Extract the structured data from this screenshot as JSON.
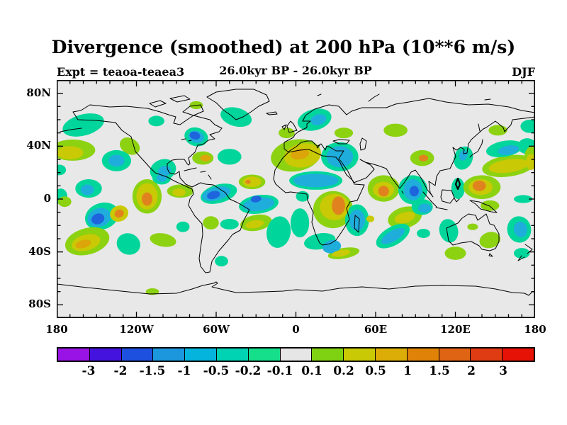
{
  "header": {
    "title": "Divergence (smoothed) at 200 hPa (10**6 m/s)",
    "experiment_label": "Expt = teaoa-teaea3",
    "period_label": "26.0kyr BP - 26.0kyr BP",
    "season_label": "DJF"
  },
  "chart_data": {
    "type": "filled-contour-map",
    "title": "Divergence (smoothed) at 200 hPa (10**6 m/s)",
    "variable": "Divergence (smoothed)",
    "pressure_level_hpa": 200,
    "units": "10**6 m/s",
    "experiment": "teaoa-teaea3",
    "period": "26.0kyr BP - 26.0kyr BP",
    "season": "DJF",
    "projection": "equirectangular",
    "lon_range": [
      -180,
      180
    ],
    "lat_range": [
      -90,
      90
    ],
    "grid": false,
    "legend_position": "bottom-colorbar",
    "map_background": "#E8E8E8",
    "contour_levels": [
      "-3",
      "-2",
      "-1.5",
      "-1",
      "-0.5",
      "-0.2",
      "-0.1",
      "0.1",
      "0.2",
      "0.5",
      "1",
      "1.5",
      "2",
      "3"
    ],
    "level_colors": [
      "#9913E6",
      "#4413DD",
      "#1E50E0",
      "#1C96DC",
      "#05B4DC",
      "#00D2B4",
      "#16DF8C",
      "#E6E6E6",
      "#7FD211",
      "#C9C905",
      "#DCAD07",
      "#E08207",
      "#DF6414",
      "#E03C14",
      "#E61205"
    ],
    "axes": {
      "x_major": [
        [
          -180,
          "180"
        ],
        [
          -120,
          "120W"
        ],
        [
          -60,
          "60W"
        ],
        [
          0,
          "0"
        ],
        [
          60,
          "60E"
        ],
        [
          120,
          "120E"
        ],
        [
          180,
          "180"
        ]
      ],
      "y_major": [
        [
          80,
          "80N"
        ],
        [
          40,
          "40N"
        ],
        [
          0,
          "0"
        ],
        [
          -40,
          "40S"
        ],
        [
          -80,
          "80S"
        ]
      ],
      "minor_step_deg": 10
    },
    "palette": {
      "teal": "#00D69B",
      "cyan": "#1FAEDC",
      "blue": "#1E64DC",
      "gy": "#8CD211",
      "olive": "#C9C905",
      "gold": "#DCA50A",
      "orange": "#E0831E"
    },
    "anomaly_blobs": [
      [
        -160,
        56,
        16,
        8,
        -15,
        "teal"
      ],
      [
        -45,
        62,
        12,
        7,
        15,
        "teal"
      ],
      [
        14,
        60,
        13,
        8,
        -15,
        "teal"
      ],
      [
        -105,
        59,
        6,
        4,
        0,
        "teal"
      ],
      [
        -75,
        71,
        5,
        3,
        0,
        "gy"
      ],
      [
        -7,
        50,
        6,
        4,
        0,
        "gy"
      ],
      [
        36,
        50,
        7,
        4,
        0,
        "gy"
      ],
      [
        75,
        52,
        9,
        5,
        0,
        "gy"
      ],
      [
        152,
        52,
        7,
        4,
        0,
        "gy"
      ],
      [
        176,
        55,
        7,
        5,
        0,
        "teal"
      ],
      [
        -168,
        37,
        17,
        8,
        0,
        "gy"
      ],
      [
        -125,
        40,
        8,
        6,
        30,
        "gy"
      ],
      [
        -135,
        29,
        11,
        8,
        0,
        "teal"
      ],
      [
        -100,
        22,
        10,
        8,
        -20,
        "teal"
      ],
      [
        -75,
        47,
        9,
        7,
        15,
        "teal"
      ],
      [
        -50,
        32,
        9,
        6,
        0,
        "teal"
      ],
      [
        -70,
        31,
        8,
        5,
        0,
        "gy"
      ],
      [
        0,
        33,
        19,
        12,
        -10,
        "gy"
      ],
      [
        33,
        32,
        14,
        11,
        0,
        "teal"
      ],
      [
        95,
        31,
        9,
        6,
        0,
        "gy"
      ],
      [
        126,
        31,
        7,
        9,
        20,
        "teal"
      ],
      [
        160,
        25,
        20,
        8,
        -8,
        "gy"
      ],
      [
        174,
        40,
        7,
        6,
        0,
        "teal"
      ],
      [
        157,
        38,
        14,
        6,
        -10,
        "teal"
      ],
      [
        178,
        32,
        6,
        8,
        0,
        "gy"
      ],
      [
        -178,
        22,
        5,
        4,
        0,
        "teal"
      ],
      [
        -156,
        8,
        10,
        7,
        0,
        "teal"
      ],
      [
        -177,
        2,
        5,
        6,
        0,
        "teal"
      ],
      [
        -174,
        -2,
        5,
        4,
        0,
        "gy"
      ],
      [
        -112,
        2,
        11,
        13,
        0,
        "gy"
      ],
      [
        -87,
        6,
        10,
        5,
        0,
        "gy"
      ],
      [
        -101,
        16,
        7,
        5,
        0,
        "teal"
      ],
      [
        -58,
        4,
        14,
        7,
        -15,
        "teal"
      ],
      [
        -33,
        13,
        10,
        5.5,
        0,
        "gy"
      ],
      [
        -28,
        -4,
        15,
        7,
        -8,
        "teal"
      ],
      [
        15,
        14,
        20,
        7,
        0,
        "teal"
      ],
      [
        5,
        2,
        5,
        4,
        0,
        "teal"
      ],
      [
        3,
        -18,
        7,
        11,
        0,
        "teal"
      ],
      [
        28,
        -8,
        15,
        14,
        0,
        "gy"
      ],
      [
        66,
        8,
        12,
        10,
        0,
        "gy"
      ],
      [
        88,
        7,
        11,
        11,
        0,
        "teal"
      ],
      [
        122,
        8,
        5,
        8,
        0,
        "teal"
      ],
      [
        140,
        9,
        14,
        9,
        0,
        "gy"
      ],
      [
        171,
        0,
        7,
        3,
        0,
        "teal"
      ],
      [
        146,
        -5,
        7,
        4,
        0,
        "gy"
      ],
      [
        -146,
        -13,
        13,
        10,
        -20,
        "teal"
      ],
      [
        -157,
        -32,
        17,
        10,
        -15,
        "gy"
      ],
      [
        -126,
        -34,
        9,
        8,
        20,
        "teal"
      ],
      [
        -100,
        -31,
        10,
        5,
        10,
        "gy"
      ],
      [
        -85,
        -21,
        5,
        4,
        0,
        "teal"
      ],
      [
        -64,
        -18,
        6,
        5,
        0,
        "gy"
      ],
      [
        -50,
        -19,
        7,
        4,
        0,
        "teal"
      ],
      [
        -30,
        -18,
        12,
        6,
        -10,
        "gy"
      ],
      [
        -13,
        -25,
        9,
        12,
        10,
        "teal"
      ],
      [
        -56,
        -47,
        5,
        4,
        0,
        "teal"
      ],
      [
        -108,
        -70,
        5,
        2.5,
        0,
        "gy"
      ],
      [
        18,
        -32,
        12,
        6,
        -10,
        "teal"
      ],
      [
        36,
        -41,
        12,
        4,
        -10,
        "gy"
      ],
      [
        46,
        -16,
        9,
        12,
        0,
        "teal"
      ],
      [
        82,
        -14,
        13,
        8,
        -15,
        "gy"
      ],
      [
        73,
        -28,
        14,
        7,
        -30,
        "teal"
      ],
      [
        96,
        -26,
        5,
        3.5,
        0,
        "teal"
      ],
      [
        95,
        -6,
        8,
        6,
        0,
        "teal"
      ],
      [
        115,
        -24,
        7,
        9,
        -15,
        "teal"
      ],
      [
        133,
        -21,
        4,
        2.5,
        0,
        "gy"
      ],
      [
        120,
        -41,
        8,
        5,
        0,
        "gy"
      ],
      [
        146,
        -31,
        8,
        6,
        -15,
        "gy"
      ],
      [
        168,
        -23,
        9,
        10,
        -10,
        "teal"
      ],
      [
        170,
        -41,
        6,
        4,
        0,
        "teal"
      ],
      [
        17,
        60,
        6,
        4,
        -15,
        "cyan"
      ],
      [
        160,
        37,
        8,
        3.5,
        -10,
        "cyan"
      ],
      [
        -170,
        35,
        10,
        5,
        0,
        "olive"
      ],
      [
        -135,
        29,
        6,
        4.5,
        0,
        "cyan"
      ],
      [
        -99,
        21,
        5,
        4,
        -20,
        "cyan"
      ],
      [
        -75,
        47,
        6,
        4.5,
        15,
        "cyan"
      ],
      [
        5,
        33,
        14,
        9,
        -10,
        "olive"
      ],
      [
        33,
        32,
        10,
        8,
        0,
        "cyan"
      ],
      [
        160,
        25,
        15,
        5,
        -8,
        "olive"
      ],
      [
        -157,
        7,
        5,
        4,
        0,
        "cyan"
      ],
      [
        -112,
        2,
        8,
        10,
        0,
        "olive"
      ],
      [
        -88,
        5,
        5,
        3,
        0,
        "olive"
      ],
      [
        -101,
        16,
        4,
        3,
        0,
        "cyan"
      ],
      [
        -60,
        4,
        11,
        5,
        -15,
        "cyan"
      ],
      [
        15,
        14,
        17,
        5,
        0,
        "cyan"
      ],
      [
        -28,
        -4,
        12,
        5,
        -8,
        "cyan"
      ],
      [
        -33,
        13,
        7,
        4,
        0,
        "olive"
      ],
      [
        29,
        -6,
        11,
        10,
        0,
        "olive"
      ],
      [
        66,
        7,
        8,
        6,
        0,
        "olive"
      ],
      [
        88,
        7,
        7,
        8,
        0,
        "cyan"
      ],
      [
        139,
        9,
        9,
        6,
        0,
        "olive"
      ],
      [
        -148,
        -14,
        9,
        7,
        -20,
        "cyan"
      ],
      [
        -133,
        -11,
        7,
        6,
        -20,
        "olive"
      ],
      [
        -158,
        -33,
        11,
        6,
        -15,
        "olive"
      ],
      [
        -31,
        -19,
        7,
        3,
        -10,
        "olive"
      ],
      [
        27,
        -36,
        7,
        5,
        -10,
        "cyan"
      ],
      [
        34,
        -41,
        7,
        2.5,
        -10,
        "olive"
      ],
      [
        46,
        -16,
        6,
        8,
        0,
        "cyan"
      ],
      [
        56,
        -15,
        3,
        2.5,
        0,
        "olive"
      ],
      [
        82,
        -14,
        8,
        4,
        -15,
        "olive"
      ],
      [
        73,
        -28,
        10,
        4,
        -30,
        "cyan"
      ],
      [
        97,
        -7,
        5,
        3.5,
        0,
        "cyan"
      ],
      [
        169,
        -23,
        5,
        6,
        -10,
        "cyan"
      ],
      [
        126,
        33,
        3,
        4,
        20,
        "cyan"
      ],
      [
        177,
        28,
        4,
        6,
        0,
        "olive"
      ],
      [
        3,
        34,
        7,
        4,
        -10,
        "gold"
      ],
      [
        -68,
        31,
        4,
        2.5,
        0,
        "gold"
      ],
      [
        96,
        31,
        3.5,
        2.5,
        0,
        "orange"
      ],
      [
        -112,
        0,
        4,
        5,
        0,
        "orange"
      ],
      [
        -30,
        0,
        4,
        2.5,
        -10,
        "blue"
      ],
      [
        -62,
        3,
        5,
        3,
        -15,
        "blue"
      ],
      [
        32,
        -5,
        5,
        7,
        0,
        "orange"
      ],
      [
        66,
        6,
        4,
        4,
        0,
        "orange"
      ],
      [
        138,
        10,
        5,
        4,
        0,
        "orange"
      ],
      [
        -149,
        -15,
        5,
        4,
        -20,
        "blue"
      ],
      [
        -133,
        -11,
        3.5,
        3,
        -20,
        "orange"
      ],
      [
        -160,
        -34,
        6,
        3,
        -15,
        "gold"
      ],
      [
        -76,
        48,
        4,
        3,
        15,
        "blue"
      ],
      [
        89,
        6,
        3.5,
        4,
        0,
        "blue"
      ],
      [
        -36,
        13,
        2,
        1.5,
        0,
        "orange"
      ]
    ]
  }
}
